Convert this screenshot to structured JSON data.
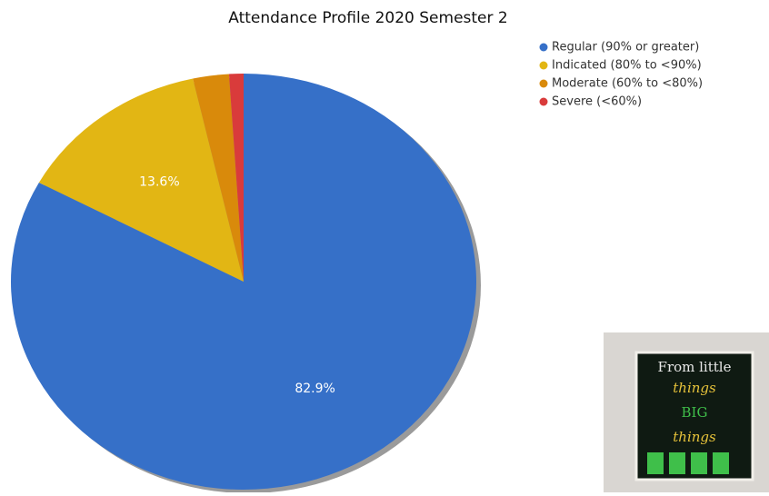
{
  "chart_data": {
    "type": "pie",
    "title": "Attendance Profile 2020 Semester 2",
    "categories": [
      "Regular (90% or greater)",
      "Indicated (80% to <90%)",
      "Moderate (60% to <80%)",
      "Severe (<60%)"
    ],
    "values": [
      82.9,
      13.6,
      2.5,
      1.0
    ],
    "value_labels": [
      "82.9%",
      "13.6%",
      null,
      null
    ],
    "colors": [
      "#3670c8",
      "#e2b614",
      "#d98a0b",
      "#d93b3b"
    ],
    "legend": "top-right"
  },
  "inset_photo": {
    "lines": [
      "From little",
      "things",
      "BIG",
      "things"
    ]
  }
}
